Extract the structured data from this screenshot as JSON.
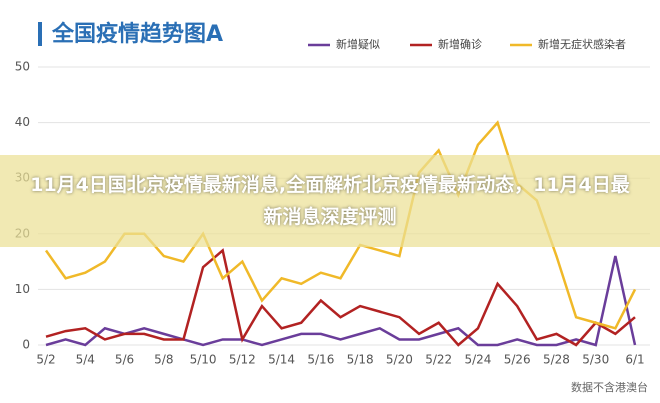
{
  "chart_data": {
    "type": "line",
    "title": "全国疫情趋势图A",
    "categories": [
      "5/2",
      null,
      "5/4",
      null,
      "5/6",
      null,
      "5/8",
      null,
      "5/10",
      null,
      "5/12",
      null,
      "5/14",
      null,
      "5/16",
      null,
      "5/18",
      null,
      "5/20",
      null,
      "5/22",
      null,
      "5/24",
      null,
      "5/26",
      null,
      "5/28",
      null,
      "5/30",
      null,
      "6/1"
    ],
    "series": [
      {
        "name": "新增疑似",
        "color": "#6a3d9a",
        "values": [
          0,
          1,
          0,
          3,
          2,
          3,
          2,
          1,
          0,
          1,
          1,
          0,
          1,
          2,
          2,
          1,
          2,
          3,
          1,
          1,
          2,
          3,
          0,
          0,
          1,
          0,
          0,
          1,
          0,
          16,
          0
        ]
      },
      {
        "name": "新增确诊",
        "color": "#b22222",
        "values": [
          1.5,
          2.5,
          3,
          1,
          2,
          2,
          1,
          1,
          14,
          17,
          1,
          7,
          3,
          4,
          8,
          5,
          7,
          6,
          5,
          2,
          4,
          0,
          3,
          11,
          7,
          1,
          2,
          0,
          4,
          2,
          5
        ]
      },
      {
        "name": "新增无症状感染者",
        "color": "#f0b929",
        "values": [
          17,
          12,
          13,
          15,
          20,
          20,
          16,
          15,
          20,
          12,
          15,
          8,
          12,
          11,
          13,
          12,
          18,
          17,
          16,
          31,
          35,
          27,
          36,
          40,
          29,
          26,
          16,
          5,
          4,
          3,
          10
        ]
      }
    ],
    "ylim": [
      0,
      50
    ],
    "yticks": [
      0,
      10,
      20,
      30,
      40,
      50
    ],
    "grid": true,
    "source": "数据不含港澳台"
  },
  "overlay": {
    "text": "11月4日国北京疫情最新消息,全面解析北京疫情最新动态，11月4日最新消息深度评测"
  }
}
